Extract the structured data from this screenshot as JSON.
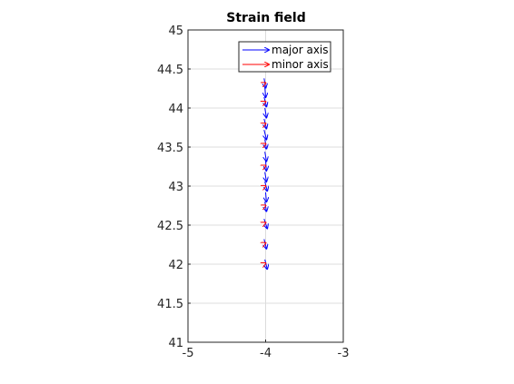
{
  "chart_data": {
    "type": "quiver",
    "title": "Strain field",
    "xlabel": "",
    "ylabel": "",
    "xlim": [
      -5,
      -3
    ],
    "ylim": [
      41,
      45
    ],
    "xticks": [
      "-5",
      "-4",
      "-3"
    ],
    "yticks": [
      "41",
      "41.5",
      "42",
      "42.5",
      "43",
      "43.5",
      "44",
      "44.5",
      "45"
    ],
    "grid": true,
    "legend": {
      "placement": "top-right",
      "entries": [
        {
          "label": "major axis",
          "color": "#0000ff"
        },
        {
          "label": "minor axis",
          "color": "#ff0000"
        }
      ]
    },
    "series": [
      {
        "name": "major axis",
        "color": "#0000ff",
        "arrows": [
          {
            "x": -4.01,
            "y": 42.06,
            "dx": 0.03,
            "dy": -0.12
          },
          {
            "x": -4.02,
            "y": 42.32,
            "dx": 0.03,
            "dy": -0.12
          },
          {
            "x": -4.02,
            "y": 42.58,
            "dx": 0.04,
            "dy": -0.12
          },
          {
            "x": -4.01,
            "y": 42.8,
            "dx": 0.02,
            "dy": -0.12
          },
          {
            "x": -4.0,
            "y": 42.92,
            "dx": 0.01,
            "dy": -0.12
          },
          {
            "x": -4.01,
            "y": 43.06,
            "dx": 0.03,
            "dy": -0.12
          },
          {
            "x": -4.01,
            "y": 43.18,
            "dx": 0.02,
            "dy": -0.12
          },
          {
            "x": -4.0,
            "y": 43.32,
            "dx": 0.01,
            "dy": -0.12
          },
          {
            "x": -4.01,
            "y": 43.44,
            "dx": 0.02,
            "dy": -0.12
          },
          {
            "x": -4.01,
            "y": 43.6,
            "dx": 0.02,
            "dy": -0.12
          },
          {
            "x": -4.02,
            "y": 43.72,
            "dx": 0.03,
            "dy": -0.12
          },
          {
            "x": -4.02,
            "y": 43.86,
            "dx": 0.03,
            "dy": -0.12
          },
          {
            "x": -4.01,
            "y": 44.0,
            "dx": 0.02,
            "dy": -0.12
          },
          {
            "x": -4.02,
            "y": 44.14,
            "dx": 0.03,
            "dy": -0.12
          },
          {
            "x": -4.01,
            "y": 44.26,
            "dx": 0.01,
            "dy": -0.12
          },
          {
            "x": -4.02,
            "y": 44.38,
            "dx": 0.02,
            "dy": -0.12
          }
        ]
      },
      {
        "name": "minor axis",
        "color": "#ff0000",
        "arrows": [
          {
            "x": -4.005,
            "y": 42.01,
            "dx": 0.004,
            "dy": 0.002
          },
          {
            "x": -4.005,
            "y": 42.27,
            "dx": 0.004,
            "dy": 0.002
          },
          {
            "x": -4.005,
            "y": 42.53,
            "dx": 0.004,
            "dy": 0.002
          },
          {
            "x": -4.005,
            "y": 42.75,
            "dx": 0.004,
            "dy": 0.002
          },
          {
            "x": -4.005,
            "y": 43.0,
            "dx": 0.004,
            "dy": 0.002
          },
          {
            "x": -4.005,
            "y": 43.26,
            "dx": 0.004,
            "dy": 0.002
          },
          {
            "x": -4.005,
            "y": 43.54,
            "dx": 0.004,
            "dy": 0.002
          },
          {
            "x": -4.005,
            "y": 43.8,
            "dx": 0.004,
            "dy": 0.002
          },
          {
            "x": -4.005,
            "y": 44.08,
            "dx": 0.004,
            "dy": 0.002
          },
          {
            "x": -4.005,
            "y": 44.32,
            "dx": 0.004,
            "dy": 0.002
          }
        ]
      }
    ]
  }
}
